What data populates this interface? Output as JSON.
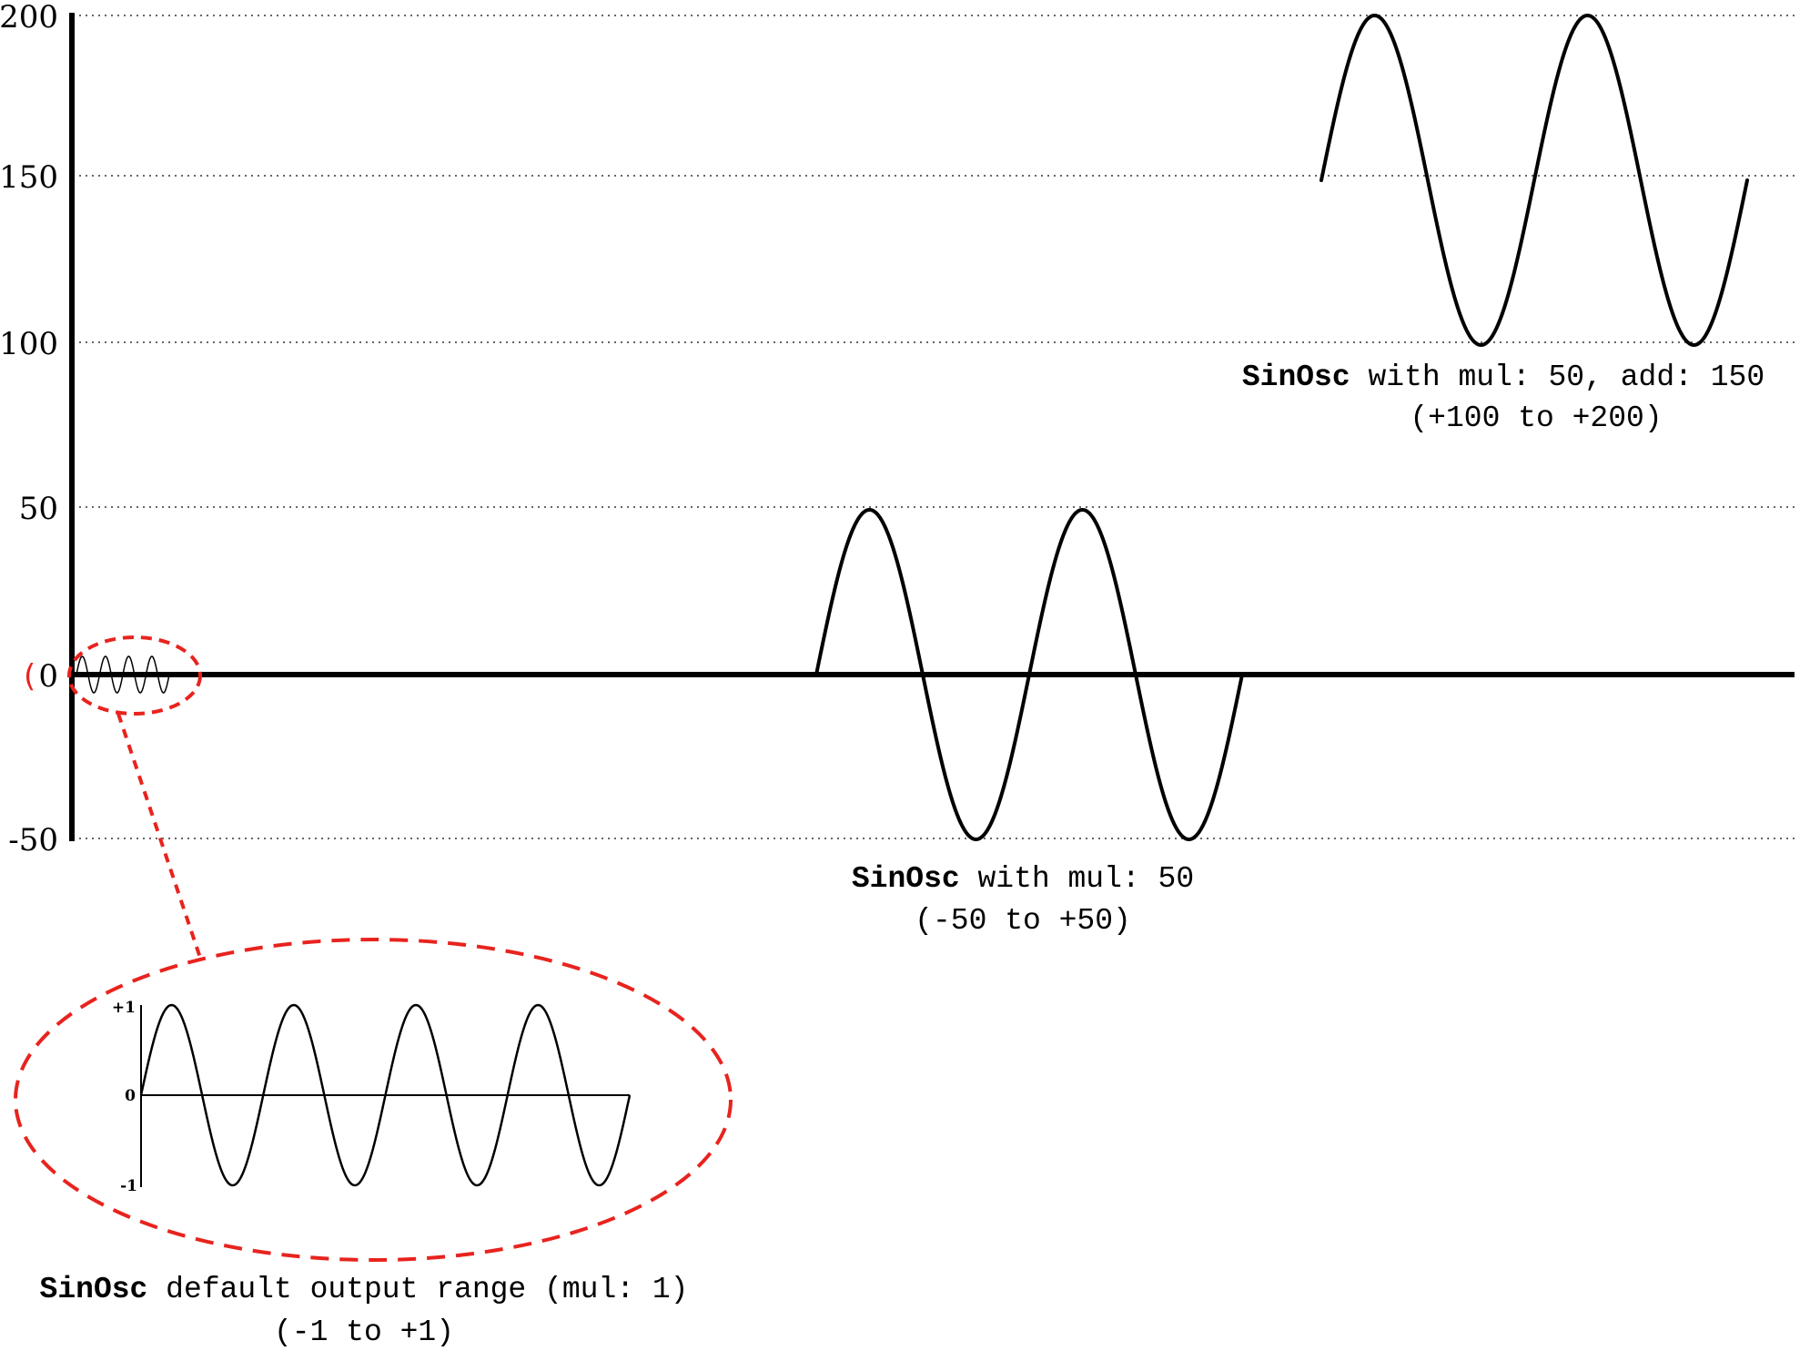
{
  "y_axis": {
    "ticks": [
      {
        "value": 200,
        "label": "200"
      },
      {
        "value": 150,
        "label": "150"
      },
      {
        "value": 100,
        "label": "100"
      },
      {
        "value": 50,
        "label": "50"
      },
      {
        "value": 0,
        "label": "0"
      },
      {
        "value": -50,
        "label": "-50"
      }
    ],
    "range": [
      -50,
      200
    ],
    "gridlines": "dotted"
  },
  "waves": {
    "default": {
      "mul": 1,
      "add": 0,
      "min": -1,
      "max": 1,
      "cycles": 4
    },
    "mul50": {
      "mul": 50,
      "add": 0,
      "min": -50,
      "max": 50,
      "cycles": 2
    },
    "mul50add150": {
      "mul": 50,
      "add": 150,
      "min": 100,
      "max": 200,
      "cycles": 2
    }
  },
  "captions": {
    "mul50add150": {
      "keyword": "SinOsc",
      "rest": " with mul: 50, add: 150",
      "range": "(+100 to +200)"
    },
    "mul50": {
      "keyword": "SinOsc",
      "rest": " with mul: 50",
      "range": "(-50 to +50)"
    },
    "default": {
      "keyword": "SinOsc",
      "rest": " default output range (mul: 1)",
      "range": "(-1 to +1)"
    }
  },
  "inset": {
    "ticks": {
      "top": "+1",
      "mid": "0",
      "bottom": "-1"
    }
  },
  "highlight": {
    "open_paren": "("
  },
  "colors": {
    "highlight": "#e8231e",
    "line": "#000000"
  }
}
